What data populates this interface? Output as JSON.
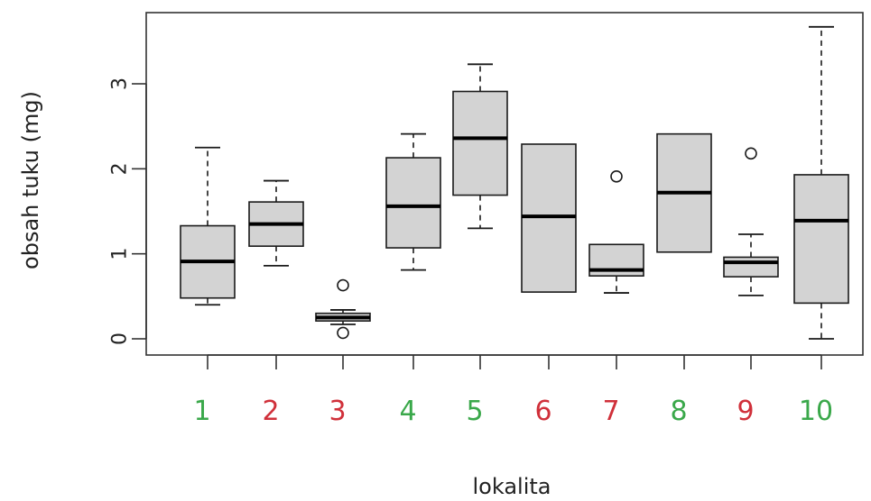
{
  "chart_data": {
    "type": "boxplot",
    "xlabel": "lokalita",
    "ylabel": "obsah tuku (mg)",
    "ylim": [
      -0.15,
      3.75
    ],
    "yticks": [
      0,
      1,
      2,
      3
    ],
    "ytick_labels": [
      "0",
      "1",
      "2",
      "3"
    ],
    "grid": false,
    "categories": [
      "1",
      "2",
      "3",
      "4",
      "5",
      "6",
      "7",
      "8",
      "9",
      "10"
    ],
    "category_colors": [
      "#3aa84a",
      "#d0303a",
      "#d0303a",
      "#3aa84a",
      "#3aa84a",
      "#d0303a",
      "#d0303a",
      "#3aa84a",
      "#d0303a",
      "#3aa84a"
    ],
    "boxes": [
      {
        "whisker_low": 0.4,
        "q1": 0.48,
        "median": 0.91,
        "q3": 1.33,
        "whisker_high": 2.25,
        "outliers": []
      },
      {
        "whisker_low": 0.86,
        "q1": 1.09,
        "median": 1.35,
        "q3": 1.61,
        "whisker_high": 1.86,
        "outliers": []
      },
      {
        "whisker_low": 0.17,
        "q1": 0.21,
        "median": 0.25,
        "q3": 0.3,
        "whisker_high": 0.34,
        "outliers": [
          0.63,
          0.07
        ]
      },
      {
        "whisker_low": 0.81,
        "q1": 1.07,
        "median": 1.56,
        "q3": 2.13,
        "whisker_high": 2.41,
        "outliers": []
      },
      {
        "whisker_low": 1.3,
        "q1": 1.69,
        "median": 2.36,
        "q3": 2.91,
        "whisker_high": 3.23,
        "outliers": []
      },
      {
        "whisker_low": 0.55,
        "q1": 0.55,
        "median": 1.44,
        "q3": 2.29,
        "whisker_high": 2.29,
        "outliers": []
      },
      {
        "whisker_low": 0.54,
        "q1": 0.74,
        "median": 0.81,
        "q3": 1.11,
        "whisker_high": 1.11,
        "outliers": [
          1.91
        ]
      },
      {
        "whisker_low": 1.02,
        "q1": 1.02,
        "median": 1.72,
        "q3": 2.41,
        "whisker_high": 2.41,
        "outliers": []
      },
      {
        "whisker_low": 0.51,
        "q1": 0.73,
        "median": 0.9,
        "q3": 0.96,
        "whisker_high": 1.23,
        "outliers": [
          2.18
        ]
      },
      {
        "whisker_low": 0.0,
        "q1": 0.42,
        "median": 1.39,
        "q3": 1.93,
        "whisker_high": 3.67,
        "outliers": []
      }
    ],
    "box_fill": "#d3d3d3",
    "line_color": "#1a1a1a"
  }
}
